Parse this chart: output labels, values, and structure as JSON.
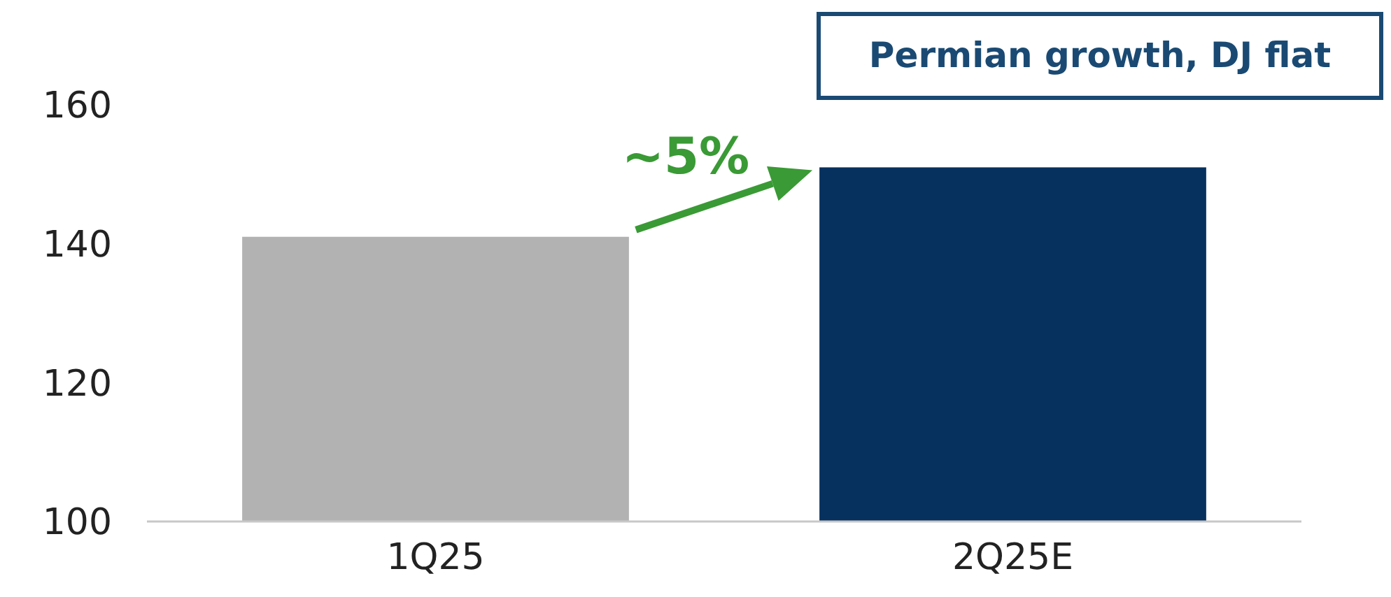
{
  "chart_data": {
    "type": "bar",
    "title": "Permian growth, DJ flat",
    "categories": [
      "1Q25",
      "2Q25E"
    ],
    "values": [
      141,
      151
    ],
    "colors": [
      "#b2b2b2",
      "#06305e"
    ],
    "ylim": [
      100,
      160
    ],
    "yticks": [
      100,
      120,
      140,
      160
    ],
    "grid": false,
    "annotations": [
      "~5%"
    ]
  }
}
